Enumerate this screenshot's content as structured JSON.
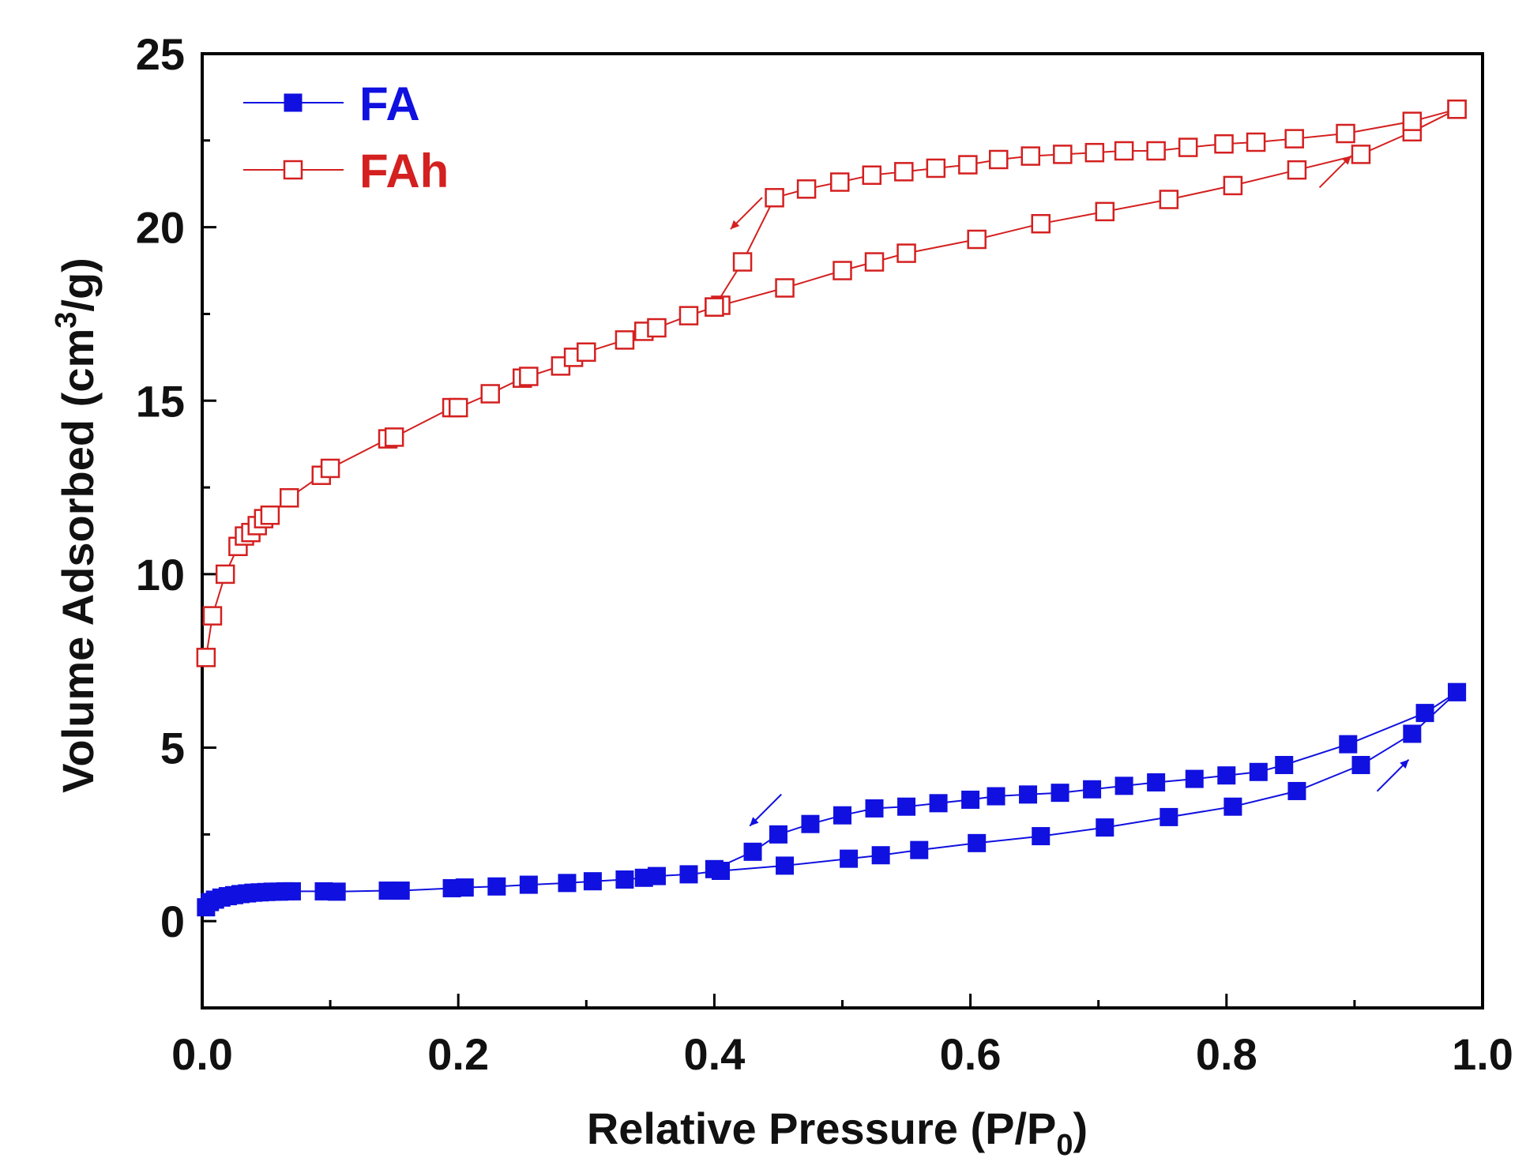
{
  "chart_data": {
    "type": "scatter",
    "title": "",
    "xlabel_main": "Relative Pressure (P/P",
    "xlabel_sub": "0",
    "xlabel_end": ")",
    "ylabel_main": "Volume Adsorbed (cm",
    "ylabel_sup": "3",
    "ylabel_end": "/g)",
    "xlim": [
      0.0,
      1.0
    ],
    "ylim": [
      -2.5,
      25
    ],
    "xticks": [
      0.0,
      0.2,
      0.4,
      0.6,
      0.8,
      1.0
    ],
    "xtick_labels": [
      "0.0",
      "0.2",
      "0.4",
      "0.6",
      "0.8",
      "1.0"
    ],
    "yticks": [
      0,
      5,
      10,
      15,
      20,
      25
    ],
    "ytick_labels": [
      "0",
      "5",
      "10",
      "15",
      "20",
      "25"
    ],
    "grid": false,
    "legend_position": "top-left",
    "series": [
      {
        "name": "FA",
        "color": "#1010e0",
        "marker": "filled-square",
        "adsorption": {
          "x": [
            0.003,
            0.006,
            0.01,
            0.015,
            0.02,
            0.025,
            0.03,
            0.035,
            0.04,
            0.045,
            0.05,
            0.055,
            0.06,
            0.065,
            0.07,
            0.095,
            0.105,
            0.145,
            0.155,
            0.195,
            0.205,
            0.23,
            0.255,
            0.285,
            0.305,
            0.33,
            0.345,
            0.355,
            0.38,
            0.405,
            0.455,
            0.505,
            0.53,
            0.56,
            0.605,
            0.655,
            0.705,
            0.755,
            0.805,
            0.855,
            0.905,
            0.945,
            0.98
          ],
          "y": [
            0.4,
            0.55,
            0.62,
            0.68,
            0.72,
            0.75,
            0.78,
            0.8,
            0.82,
            0.83,
            0.84,
            0.85,
            0.85,
            0.86,
            0.86,
            0.86,
            0.85,
            0.88,
            0.88,
            0.95,
            0.97,
            1.0,
            1.05,
            1.1,
            1.15,
            1.2,
            1.25,
            1.3,
            1.35,
            1.45,
            1.6,
            1.8,
            1.9,
            2.05,
            2.25,
            2.45,
            2.7,
            3.0,
            3.3,
            3.75,
            4.5,
            5.4,
            6.6
          ]
        },
        "desorption": {
          "x": [
            0.98,
            0.955,
            0.895,
            0.845,
            0.825,
            0.8,
            0.775,
            0.745,
            0.72,
            0.695,
            0.67,
            0.645,
            0.62,
            0.6,
            0.575,
            0.55,
            0.525,
            0.5,
            0.475,
            0.45,
            0.43,
            0.4
          ],
          "y": [
            6.6,
            6.0,
            5.1,
            4.5,
            4.3,
            4.2,
            4.1,
            4.0,
            3.9,
            3.8,
            3.7,
            3.65,
            3.6,
            3.5,
            3.4,
            3.3,
            3.25,
            3.05,
            2.8,
            2.5,
            2.0,
            1.5
          ]
        }
      },
      {
        "name": "FAh",
        "color": "#d42020",
        "marker": "open-square",
        "adsorption": {
          "x": [
            0.003,
            0.008,
            0.018,
            0.028,
            0.033,
            0.038,
            0.043,
            0.048,
            0.053,
            0.068,
            0.093,
            0.1,
            0.145,
            0.15,
            0.195,
            0.2,
            0.225,
            0.25,
            0.255,
            0.28,
            0.29,
            0.3,
            0.33,
            0.345,
            0.355,
            0.38,
            0.4,
            0.405,
            0.455,
            0.5,
            0.525,
            0.55,
            0.605,
            0.655,
            0.705,
            0.755,
            0.805,
            0.855,
            0.905,
            0.945,
            0.98
          ],
          "y": [
            7.6,
            8.8,
            10.0,
            10.8,
            11.1,
            11.2,
            11.4,
            11.6,
            11.7,
            12.2,
            12.85,
            13.05,
            13.9,
            13.95,
            14.8,
            14.8,
            15.2,
            15.65,
            15.7,
            16.0,
            16.25,
            16.4,
            16.75,
            17.0,
            17.1,
            17.45,
            17.7,
            17.75,
            18.25,
            18.75,
            19.0,
            19.25,
            19.65,
            20.1,
            20.45,
            20.8,
            21.2,
            21.65,
            22.1,
            22.75,
            23.4
          ]
        },
        "desorption": {
          "x": [
            0.98,
            0.945,
            0.893,
            0.853,
            0.823,
            0.798,
            0.77,
            0.745,
            0.72,
            0.697,
            0.672,
            0.647,
            0.622,
            0.598,
            0.573,
            0.548,
            0.523,
            0.498,
            0.472,
            0.447,
            0.422,
            0.4
          ],
          "y": [
            23.4,
            23.05,
            22.7,
            22.55,
            22.45,
            22.4,
            22.3,
            22.2,
            22.2,
            22.15,
            22.1,
            22.05,
            21.95,
            21.8,
            21.7,
            21.6,
            21.5,
            21.3,
            21.1,
            20.85,
            19.0,
            17.7
          ]
        }
      }
    ],
    "annotations": [
      {
        "type": "arrow",
        "series": "FAh",
        "direction": "down-left",
        "x": 0.425,
        "y": 20.4
      },
      {
        "type": "arrow",
        "series": "FAh",
        "direction": "up-right",
        "x": 0.885,
        "y": 21.6
      },
      {
        "type": "arrow",
        "series": "FA",
        "direction": "down-left",
        "x": 0.44,
        "y": 3.2
      },
      {
        "type": "arrow",
        "series": "FA",
        "direction": "up-right",
        "x": 0.93,
        "y": 4.2
      }
    ],
    "axis_color": "#000000"
  }
}
